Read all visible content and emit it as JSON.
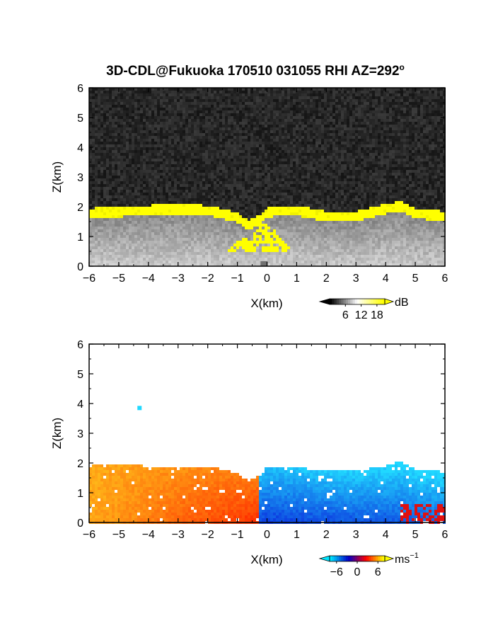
{
  "title": "3D-CDL@Fukuoka 170510 031055 RHI AZ=292",
  "title_suffix": "o",
  "chart_data": [
    {
      "type": "heatmap",
      "variable": "backscatter intensity",
      "xlabel": "X(km)",
      "ylabel": "Z(km)",
      "xlim": [
        -6,
        6
      ],
      "ylim": [
        0,
        6
      ],
      "xticks": [
        -6,
        -5,
        -4,
        -3,
        -2,
        -1,
        0,
        1,
        2,
        3,
        4,
        5,
        6
      ],
      "yticks": [
        0,
        1,
        2,
        3,
        4,
        5,
        6
      ],
      "colorbar": {
        "label": "dB",
        "ticks": [
          6,
          12,
          18
        ],
        "range": [
          0,
          21
        ],
        "colors": [
          "#000000",
          "#ffffff",
          "#ffff00"
        ]
      },
      "boundary_layer_top_km": [
        [
          -6,
          1.75
        ],
        [
          -5,
          1.8
        ],
        [
          -4,
          1.85
        ],
        [
          -3,
          1.9
        ],
        [
          -2,
          1.85
        ],
        [
          -1,
          1.6
        ],
        [
          -0.6,
          1.35
        ],
        [
          -0.2,
          1.55
        ],
        [
          0,
          1.8
        ],
        [
          1,
          1.85
        ],
        [
          2,
          1.65
        ],
        [
          3,
          1.65
        ],
        [
          4,
          1.9
        ],
        [
          4.5,
          2.0
        ],
        [
          5,
          1.75
        ],
        [
          6,
          1.65
        ]
      ]
    },
    {
      "type": "heatmap",
      "variable": "Doppler velocity",
      "xlabel": "X(km)",
      "ylabel": "Z(km)",
      "xlim": [
        -6,
        6
      ],
      "ylim": [
        0,
        6
      ],
      "xticks": [
        -6,
        -5,
        -4,
        -3,
        -2,
        -1,
        0,
        1,
        2,
        3,
        4,
        5,
        6
      ],
      "yticks": [
        0,
        1,
        2,
        3,
        4,
        5,
        6
      ],
      "colorbar": {
        "label": "ms",
        "label_sup": "−1",
        "ticks": [
          -6,
          0,
          6
        ],
        "tick_labels": [
          "−6",
          "0",
          "6"
        ],
        "range": [
          -8,
          8
        ],
        "colors": [
          "#00e5ff",
          "#0000c8",
          "#ff0000",
          "#ffff00"
        ]
      },
      "boundary_layer_top_km": [
        [
          -6,
          1.85
        ],
        [
          -5,
          1.9
        ],
        [
          -4,
          1.85
        ],
        [
          -3,
          1.85
        ],
        [
          -2,
          1.85
        ],
        [
          -1,
          1.6
        ],
        [
          -0.6,
          1.35
        ],
        [
          -0.2,
          1.55
        ],
        [
          0,
          1.85
        ],
        [
          1,
          1.8
        ],
        [
          2,
          1.7
        ],
        [
          3,
          1.7
        ],
        [
          4,
          1.85
        ],
        [
          4.5,
          2.0
        ],
        [
          5,
          1.75
        ],
        [
          6,
          1.65
        ]
      ]
    }
  ]
}
